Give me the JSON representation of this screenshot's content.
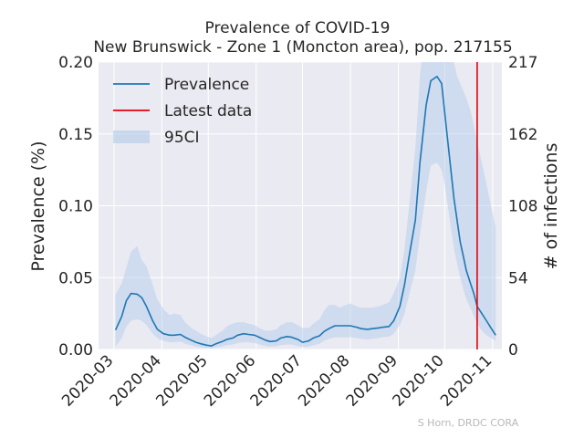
{
  "chart_data": {
    "type": "line",
    "title": "Prevalence of COVID-19",
    "subtitle": "New Brunswick - Zone 1 (Moncton area), pop. 217155",
    "xlabel": "",
    "ylabel": "Prevalence (%)",
    "ylabel_right": "# of infections",
    "x_ticks": [
      "2020-03",
      "2020-04",
      "2020-05",
      "2020-06",
      "2020-07",
      "2020-08",
      "2020-09",
      "2020-10",
      "2020-11"
    ],
    "y_ticks": [
      "0.00",
      "0.05",
      "0.10",
      "0.15",
      "0.20"
    ],
    "y_ticks_right": [
      "0",
      "54",
      "108",
      "162",
      "217"
    ],
    "xlim": [
      "2020-02-20",
      "2020-11-07"
    ],
    "ylim": [
      0,
      0.2
    ],
    "grid": true,
    "legend_position": "top-left",
    "legend": [
      "Prevalence",
      "Latest data",
      "95CI"
    ],
    "colors": {
      "prevalence": "#1f77b4",
      "latest": "#e8000b",
      "ci": "#b0c9e8",
      "plot_bg": "#eaeaf2",
      "grid": "#ffffff"
    },
    "latest_date": "2020-10-22",
    "series": [
      {
        "name": "Prevalence",
        "x": [
          "2020-03-02",
          "2020-03-06",
          "2020-03-09",
          "2020-03-12",
          "2020-03-16",
          "2020-03-19",
          "2020-03-22",
          "2020-03-26",
          "2020-03-29",
          "2020-04-02",
          "2020-04-06",
          "2020-04-09",
          "2020-04-13",
          "2020-04-16",
          "2020-04-20",
          "2020-04-23",
          "2020-04-26",
          "2020-04-30",
          "2020-05-03",
          "2020-05-06",
          "2020-05-10",
          "2020-05-13",
          "2020-05-17",
          "2020-05-20",
          "2020-05-24",
          "2020-05-27",
          "2020-05-31",
          "2020-06-03",
          "2020-06-07",
          "2020-06-10",
          "2020-06-14",
          "2020-06-17",
          "2020-06-21",
          "2020-06-24",
          "2020-06-28",
          "2020-07-01",
          "2020-07-05",
          "2020-07-08",
          "2020-07-12",
          "2020-07-15",
          "2020-07-18",
          "2020-07-22",
          "2020-07-25",
          "2020-07-29",
          "2020-08-01",
          "2020-08-05",
          "2020-08-08",
          "2020-08-12",
          "2020-08-15",
          "2020-08-19",
          "2020-08-22",
          "2020-08-26",
          "2020-08-29",
          "2020-09-02",
          "2020-09-05",
          "2020-09-08",
          "2020-09-12",
          "2020-09-15",
          "2020-09-19",
          "2020-09-22",
          "2020-09-26",
          "2020-09-29",
          "2020-10-01",
          "2020-10-03",
          "2020-10-05",
          "2020-10-07",
          "2020-10-09",
          "2020-10-11",
          "2020-10-13",
          "2020-10-15",
          "2020-10-18",
          "2020-10-20",
          "2020-10-22",
          "2020-10-25",
          "2020-10-28",
          "2020-10-31",
          "2020-11-03"
        ],
        "values": [
          0.0135,
          0.023,
          0.034,
          0.039,
          0.0385,
          0.036,
          0.03,
          0.02,
          0.014,
          0.011,
          0.01,
          0.01,
          0.0105,
          0.0085,
          0.0065,
          0.005,
          0.004,
          0.003,
          0.0025,
          0.004,
          0.0055,
          0.007,
          0.008,
          0.01,
          0.011,
          0.0105,
          0.01,
          0.0085,
          0.0065,
          0.0055,
          0.006,
          0.008,
          0.009,
          0.0085,
          0.007,
          0.005,
          0.006,
          0.008,
          0.0095,
          0.0125,
          0.0145,
          0.0165,
          0.0165,
          0.0165,
          0.0165,
          0.0155,
          0.0145,
          0.014,
          0.0145,
          0.015,
          0.0155,
          0.016,
          0.02,
          0.03,
          0.045,
          0.065,
          0.09,
          0.13,
          0.17,
          0.187,
          0.19,
          0.185,
          0.165,
          0.145,
          0.125,
          0.105,
          0.09,
          0.075,
          0.065,
          0.055,
          0.045,
          0.0385,
          0.03,
          0.025,
          0.02,
          0.015,
          0.01
        ]
      }
    ],
    "ci": {
      "name": "95CI",
      "x": [
        "2020-03-02",
        "2020-03-06",
        "2020-03-09",
        "2020-03-12",
        "2020-03-16",
        "2020-03-19",
        "2020-03-22",
        "2020-03-26",
        "2020-03-29",
        "2020-04-02",
        "2020-04-06",
        "2020-04-09",
        "2020-04-13",
        "2020-04-16",
        "2020-04-20",
        "2020-04-23",
        "2020-04-26",
        "2020-04-30",
        "2020-05-03",
        "2020-05-06",
        "2020-05-10",
        "2020-05-13",
        "2020-05-17",
        "2020-05-20",
        "2020-05-24",
        "2020-05-27",
        "2020-05-31",
        "2020-06-03",
        "2020-06-07",
        "2020-06-10",
        "2020-06-14",
        "2020-06-17",
        "2020-06-21",
        "2020-06-24",
        "2020-06-28",
        "2020-07-01",
        "2020-07-05",
        "2020-07-08",
        "2020-07-12",
        "2020-07-15",
        "2020-07-18",
        "2020-07-22",
        "2020-07-25",
        "2020-07-29",
        "2020-08-01",
        "2020-08-05",
        "2020-08-08",
        "2020-08-12",
        "2020-08-15",
        "2020-08-19",
        "2020-08-22",
        "2020-08-26",
        "2020-08-29",
        "2020-09-02",
        "2020-09-05",
        "2020-09-08",
        "2020-09-12",
        "2020-09-15",
        "2020-09-19",
        "2020-09-22",
        "2020-09-26",
        "2020-09-29",
        "2020-10-01",
        "2020-10-03",
        "2020-10-05",
        "2020-10-07",
        "2020-10-09",
        "2020-10-11",
        "2020-10-13",
        "2020-10-15",
        "2020-10-18",
        "2020-10-20",
        "2020-10-22",
        "2020-10-25",
        "2020-10-28",
        "2020-10-31",
        "2020-11-03"
      ],
      "upper": [
        0.038,
        0.046,
        0.057,
        0.068,
        0.072,
        0.062,
        0.058,
        0.045,
        0.035,
        0.028,
        0.024,
        0.025,
        0.024,
        0.019,
        0.015,
        0.013,
        0.011,
        0.009,
        0.008,
        0.01,
        0.013,
        0.016,
        0.018,
        0.019,
        0.019,
        0.018,
        0.017,
        0.015,
        0.013,
        0.013,
        0.014,
        0.017,
        0.019,
        0.019,
        0.017,
        0.015,
        0.015,
        0.018,
        0.021,
        0.027,
        0.031,
        0.031,
        0.029,
        0.031,
        0.032,
        0.03,
        0.029,
        0.029,
        0.029,
        0.03,
        0.031,
        0.033,
        0.039,
        0.05,
        0.07,
        0.1,
        0.14,
        0.19,
        0.23,
        0.25,
        0.25,
        0.24,
        0.23,
        0.22,
        0.21,
        0.2,
        0.19,
        0.185,
        0.18,
        0.175,
        0.165,
        0.155,
        0.145,
        0.13,
        0.115,
        0.1,
        0.085
      ],
      "lower": [
        0.002,
        0.008,
        0.016,
        0.02,
        0.021,
        0.02,
        0.017,
        0.011,
        0.008,
        0.006,
        0.005,
        0.005,
        0.0055,
        0.004,
        0.003,
        0.002,
        0.0015,
        0.001,
        0.0008,
        0.0015,
        0.002,
        0.003,
        0.0035,
        0.0045,
        0.005,
        0.005,
        0.0045,
        0.0035,
        0.0025,
        0.002,
        0.0022,
        0.003,
        0.0035,
        0.0035,
        0.0025,
        0.0018,
        0.002,
        0.003,
        0.004,
        0.006,
        0.0075,
        0.0085,
        0.0085,
        0.0085,
        0.0085,
        0.008,
        0.0075,
        0.007,
        0.0075,
        0.008,
        0.0085,
        0.009,
        0.011,
        0.017,
        0.025,
        0.038,
        0.055,
        0.08,
        0.11,
        0.128,
        0.13,
        0.125,
        0.115,
        0.1,
        0.085,
        0.07,
        0.06,
        0.05,
        0.042,
        0.035,
        0.028,
        0.023,
        0.018,
        0.013,
        0.01,
        0.008,
        0.006
      ]
    }
  },
  "footer": {
    "credit": "S Horn, DRDC CORA"
  }
}
